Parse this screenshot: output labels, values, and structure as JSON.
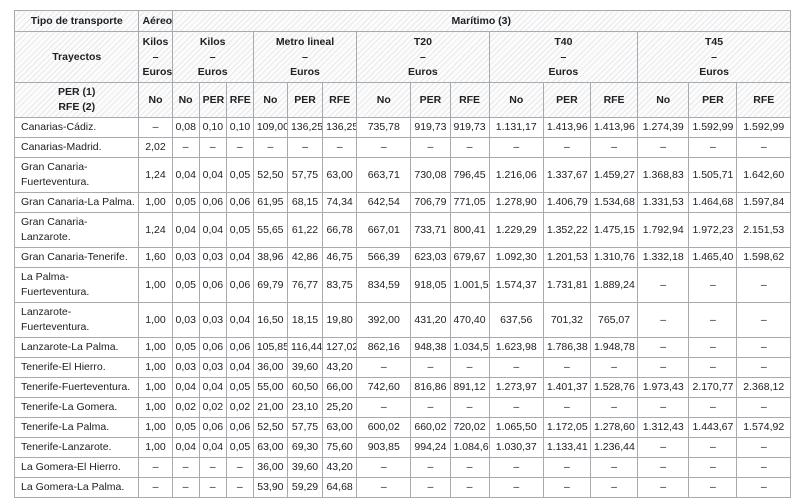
{
  "table": {
    "header": {
      "tipo_de_transporte": "Tipo de transporte",
      "trayectos": "Trayectos",
      "per_rfe": "PER (1)\nRFE (2)",
      "aereo": "Aéreo",
      "maritimo": "Marítimo (3)",
      "aereo_unit": "Kilos\n–\nEuros",
      "aereo_subcol": "No",
      "groups": [
        "Kilos\n–\nEuros",
        "Metro lineal\n–\nEuros",
        "T20\n–\nEuros",
        "T40\n–\nEuros",
        "T45\n–\nEuros"
      ],
      "subcols": [
        "No",
        "PER",
        "RFE"
      ]
    },
    "columns": [
      "aereo_no",
      "kilos_no",
      "kilos_per",
      "kilos_rfe",
      "metro_lineal_no",
      "metro_lineal_per",
      "metro_lineal_rfe",
      "t20_no",
      "t20_per",
      "t20_rfe",
      "t40_no",
      "t40_per",
      "t40_rfe",
      "t45_no",
      "t45_per",
      "t45_rfe"
    ],
    "rows": [
      {
        "route": "Canarias-Cádiz.",
        "values": [
          "–",
          "0,08",
          "0,10",
          "0,10",
          "109,00",
          "136,25",
          "136,25",
          "735,78",
          "919,73",
          "919,73",
          "1.131,17",
          "1.413,96",
          "1.413,96",
          "1.274,39",
          "1.592,99",
          "1.592,99"
        ]
      },
      {
        "route": "Canarias-Madrid.",
        "values": [
          "2,02",
          "–",
          "–",
          "–",
          "–",
          "–",
          "–",
          "–",
          "–",
          "–",
          "–",
          "–",
          "–",
          "–",
          "–",
          "–"
        ]
      },
      {
        "route": "Gran Canaria-Fuerteventura.",
        "values": [
          "1,24",
          "0,04",
          "0,04",
          "0,05",
          "52,50",
          "57,75",
          "63,00",
          "663,71",
          "730,08",
          "796,45",
          "1.216,06",
          "1.337,67",
          "1.459,27",
          "1.368,83",
          "1.505,71",
          "1.642,60"
        ]
      },
      {
        "route": "Gran Canaria-La Palma.",
        "values": [
          "1,00",
          "0,05",
          "0,06",
          "0,06",
          "61,95",
          "68,15",
          "74,34",
          "642,54",
          "706,79",
          "771,05",
          "1.278,90",
          "1.406,79",
          "1.534,68",
          "1.331,53",
          "1.464,68",
          "1.597,84"
        ]
      },
      {
        "route": "Gran Canaria-Lanzarote.",
        "values": [
          "1,24",
          "0,04",
          "0,04",
          "0,05",
          "55,65",
          "61,22",
          "66,78",
          "667,01",
          "733,71",
          "800,41",
          "1.229,29",
          "1.352,22",
          "1.475,15",
          "1.792,94",
          "1.972,23",
          "2.151,53"
        ]
      },
      {
        "route": "Gran Canaria-Tenerife.",
        "values": [
          "1,60",
          "0,03",
          "0,03",
          "0,04",
          "38,96",
          "42,86",
          "46,75",
          "566,39",
          "623,03",
          "679,67",
          "1.092,30",
          "1.201,53",
          "1.310,76",
          "1.332,18",
          "1.465,40",
          "1.598,62"
        ]
      },
      {
        "route": "La Palma-Fuerteventura.",
        "values": [
          "1,00",
          "0,05",
          "0,06",
          "0,06",
          "69,79",
          "76,77",
          "83,75",
          "834,59",
          "918,05",
          "1.001,51",
          "1.574,37",
          "1.731,81",
          "1.889,24",
          "–",
          "–",
          "–"
        ]
      },
      {
        "route": "Lanzarote-Fuerteventura.",
        "values": [
          "1,00",
          "0,03",
          "0,03",
          "0,04",
          "16,50",
          "18,15",
          "19,80",
          "392,00",
          "431,20",
          "470,40",
          "637,56",
          "701,32",
          "765,07",
          "–",
          "–",
          "–"
        ]
      },
      {
        "route": "Lanzarote-La Palma.",
        "values": [
          "1,00",
          "0,05",
          "0,06",
          "0,06",
          "105,85",
          "116,44",
          "127,02",
          "862,16",
          "948,38",
          "1.034,59",
          "1.623,98",
          "1.786,38",
          "1.948,78",
          "–",
          "–",
          "–"
        ]
      },
      {
        "route": "Tenerife-El Hierro.",
        "values": [
          "1,00",
          "0,03",
          "0,03",
          "0,04",
          "36,00",
          "39,60",
          "43,20",
          "–",
          "–",
          "–",
          "–",
          "–",
          "–",
          "–",
          "–",
          "–"
        ]
      },
      {
        "route": "Tenerife-Fuerteventura.",
        "values": [
          "1,00",
          "0,04",
          "0,04",
          "0,05",
          "55,00",
          "60,50",
          "66,00",
          "742,60",
          "816,86",
          "891,12",
          "1.273,97",
          "1.401,37",
          "1.528,76",
          "1.973,43",
          "2.170,77",
          "2.368,12"
        ]
      },
      {
        "route": "Tenerife-La Gomera.",
        "values": [
          "1,00",
          "0,02",
          "0,02",
          "0,02",
          "21,00",
          "23,10",
          "25,20",
          "–",
          "–",
          "–",
          "–",
          "–",
          "–",
          "–",
          "–",
          "–"
        ]
      },
      {
        "route": "Tenerife-La Palma.",
        "values": [
          "1,00",
          "0,05",
          "0,06",
          "0,06",
          "52,50",
          "57,75",
          "63,00",
          "600,02",
          "660,02",
          "720,02",
          "1.065,50",
          "1.172,05",
          "1.278,60",
          "1.312,43",
          "1.443,67",
          "1.574,92"
        ]
      },
      {
        "route": "Tenerife-Lanzarote.",
        "values": [
          "1,00",
          "0,04",
          "0,04",
          "0,05",
          "63,00",
          "69,30",
          "75,60",
          "903,85",
          "994,24",
          "1.084,62",
          "1.030,37",
          "1.133,41",
          "1.236,44",
          "–",
          "–",
          "–"
        ]
      },
      {
        "route": "La Gomera-El Hierro.",
        "values": [
          "–",
          "–",
          "–",
          "–",
          "36,00",
          "39,60",
          "43,20",
          "–",
          "–",
          "–",
          "–",
          "–",
          "–",
          "–",
          "–",
          "–"
        ]
      },
      {
        "route": "La Gomera-La Palma.",
        "values": [
          "–",
          "–",
          "–",
          "–",
          "53,90",
          "59,29",
          "64,68",
          "–",
          "–",
          "–",
          "–",
          "–",
          "–",
          "–",
          "–",
          "–"
        ]
      }
    ]
  }
}
